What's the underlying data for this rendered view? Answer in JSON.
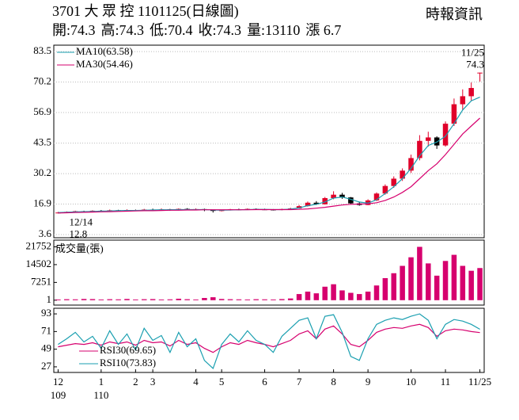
{
  "header": {
    "title": "3701 大 眾 控 1101125(日線圖)",
    "source": "時報資訊",
    "info": [
      "開:74.3",
      "高:74.3",
      "低:70.4",
      "收:74.3",
      "量:13110",
      "漲 6.7"
    ]
  },
  "chart_data": [
    {
      "type": "candlestick",
      "open": [
        13.0,
        13.2,
        13.5,
        13.8,
        13.6,
        14.0,
        13.9,
        14.2,
        14.0,
        14.3,
        14.1,
        14.5,
        14.4,
        14.6,
        14.2,
        14.8,
        14.5,
        14.7,
        14.3,
        13.9,
        14.2,
        14.6,
        14.4,
        14.8,
        14.6,
        14.5,
        14.3,
        14.7,
        15.0,
        16.0,
        17.5,
        16.8,
        19.5,
        21.0,
        19.8,
        17.2,
        16.5,
        18.5,
        21.5,
        24.8,
        28.0,
        31.5,
        37.0,
        44.5,
        46.0,
        42.5,
        52.0,
        60.5,
        64.0,
        74.3
      ],
      "high": [
        13.5,
        13.7,
        14.0,
        14.0,
        14.2,
        14.3,
        14.5,
        14.4,
        14.6,
        14.5,
        14.8,
        14.9,
        15.0,
        14.8,
        15.0,
        15.1,
        15.0,
        14.9,
        14.5,
        14.4,
        14.8,
        14.9,
        15.0,
        15.0,
        14.9,
        14.7,
        14.9,
        15.3,
        16.5,
        18.0,
        18.2,
        20.0,
        22.5,
        21.8,
        20.0,
        17.8,
        19.0,
        22.0,
        25.5,
        29.0,
        32.5,
        38.5,
        47.0,
        48.5,
        46.5,
        53.0,
        63.0,
        67.0,
        70.0,
        74.3
      ],
      "low": [
        12.8,
        13.0,
        13.3,
        13.4,
        13.5,
        13.7,
        13.8,
        13.8,
        13.9,
        13.9,
        14.0,
        14.2,
        14.3,
        14.0,
        14.1,
        14.3,
        14.4,
        13.8,
        13.2,
        13.7,
        14.1,
        14.2,
        14.3,
        14.4,
        14.3,
        14.1,
        14.2,
        14.6,
        14.9,
        15.8,
        16.5,
        16.7,
        19.0,
        19.2,
        17.0,
        16.2,
        16.4,
        18.2,
        21.0,
        24.0,
        27.0,
        30.5,
        36.0,
        42.0,
        41.0,
        42.0,
        51.0,
        58.0,
        62.0,
        70.4
      ],
      "close": [
        13.2,
        13.5,
        13.8,
        13.6,
        14.0,
        13.9,
        14.2,
        14.0,
        14.3,
        14.1,
        14.5,
        14.4,
        14.6,
        14.2,
        14.8,
        14.5,
        14.7,
        14.3,
        13.9,
        14.2,
        14.6,
        14.4,
        14.8,
        14.6,
        14.5,
        14.3,
        14.7,
        15.0,
        16.0,
        17.5,
        16.8,
        19.5,
        21.0,
        19.8,
        17.2,
        16.5,
        18.5,
        21.5,
        24.8,
        28.0,
        31.5,
        37.0,
        44.5,
        46.0,
        42.5,
        52.0,
        60.5,
        64.0,
        67.6,
        74.3
      ],
      "up_color": "#e0002a",
      "down_color": "#000000",
      "series": [
        {
          "name": "MA10(63.58)",
          "color": "#1a9fb0",
          "values": [
            13.2,
            13.3,
            13.5,
            13.6,
            13.7,
            13.8,
            13.9,
            14.0,
            14.1,
            14.1,
            14.2,
            14.3,
            14.4,
            14.4,
            14.5,
            14.5,
            14.5,
            14.5,
            14.3,
            14.2,
            14.3,
            14.4,
            14.5,
            14.6,
            14.6,
            14.5,
            14.5,
            14.7,
            15.2,
            16.2,
            16.8,
            17.8,
            19.5,
            20.0,
            19.0,
            17.8,
            17.3,
            18.8,
            21.5,
            24.5,
            28.0,
            32.5,
            38.0,
            42.5,
            44.0,
            46.5,
            52.0,
            58.0,
            62.0,
            63.58
          ]
        },
        {
          "name": "MA30(54.46)",
          "color": "#d6006e",
          "values": [
            13.0,
            13.1,
            13.2,
            13.3,
            13.4,
            13.5,
            13.6,
            13.7,
            13.8,
            13.9,
            14.0,
            14.0,
            14.1,
            14.2,
            14.2,
            14.3,
            14.3,
            14.4,
            14.4,
            14.4,
            14.4,
            14.4,
            14.4,
            14.5,
            14.5,
            14.5,
            14.5,
            14.5,
            14.6,
            14.8,
            15.1,
            15.5,
            16.0,
            16.5,
            16.8,
            16.9,
            17.0,
            17.5,
            18.5,
            20.0,
            22.0,
            24.5,
            28.0,
            31.5,
            34.5,
            38.5,
            43.0,
            47.5,
            51.0,
            54.46
          ]
        }
      ],
      "annotations": [
        {
          "date": "12/14",
          "value": 12.8,
          "x": 0
        },
        {
          "date": "11/25",
          "value": 74.3,
          "x": 49
        }
      ],
      "ylim": [
        2.2,
        86.3
      ],
      "yticks": [
        83.5,
        70.2,
        56.9,
        43.5,
        30.2,
        16.9,
        3.6
      ],
      "grid": true
    },
    {
      "type": "bar",
      "title": "成交量(張)",
      "color": "#d6006e",
      "values": [
        300,
        400,
        350,
        500,
        450,
        300,
        400,
        350,
        500,
        300,
        400,
        450,
        300,
        350,
        600,
        400,
        300,
        900,
        1200,
        500,
        400,
        350,
        300,
        400,
        350,
        300,
        450,
        700,
        2500,
        3500,
        2800,
        5500,
        6500,
        4000,
        3000,
        2500,
        3500,
        6000,
        9000,
        11000,
        14000,
        17500,
        21752,
        15000,
        10000,
        16000,
        18500,
        14000,
        12000,
        13110
      ],
      "ylim": [
        -2000,
        24500
      ],
      "yticks": [
        21752,
        14502,
        7251,
        1
      ]
    },
    {
      "type": "line",
      "series": [
        {
          "name": "RSI30(69.65)",
          "color": "#d6006e",
          "values": [
            52,
            54,
            56,
            55,
            57,
            54,
            58,
            56,
            58,
            54,
            60,
            57,
            58,
            53,
            60,
            55,
            57,
            50,
            45,
            52,
            57,
            55,
            60,
            57,
            55,
            52,
            56,
            60,
            68,
            72,
            62,
            74,
            78,
            68,
            55,
            52,
            60,
            70,
            74,
            76,
            75,
            78,
            80,
            76,
            65,
            72,
            74,
            73,
            71,
            69.65
          ]
        },
        {
          "name": "RSI10(73.83)",
          "color": "#1a9fb0",
          "values": [
            55,
            62,
            70,
            58,
            65,
            50,
            72,
            55,
            68,
            48,
            75,
            60,
            66,
            45,
            70,
            52,
            62,
            35,
            25,
            55,
            68,
            58,
            72,
            60,
            55,
            45,
            65,
            75,
            85,
            88,
            62,
            90,
            92,
            70,
            40,
            35,
            62,
            80,
            85,
            88,
            86,
            90,
            93,
            85,
            62,
            80,
            86,
            84,
            80,
            73.83
          ]
        }
      ],
      "ylim": [
        20,
        100
      ],
      "yticks": [
        93,
        71,
        49,
        27
      ],
      "xticks": [
        {
          "value": 0,
          "label": "12"
        },
        {
          "value": 5,
          "label": "1"
        },
        {
          "value": 9,
          "label": "2"
        },
        {
          "value": 11,
          "label": "3"
        },
        {
          "value": 16,
          "label": "4"
        },
        {
          "value": 19,
          "label": "5"
        },
        {
          "value": 24,
          "label": "6"
        },
        {
          "value": 28,
          "label": "7"
        },
        {
          "value": 32,
          "label": "8"
        },
        {
          "value": 36,
          "label": "9"
        },
        {
          "value": 41,
          "label": "10"
        },
        {
          "value": 45,
          "label": "11"
        },
        {
          "value": 49,
          "label": "11/25"
        }
      ],
      "xtick_years": [
        {
          "value": 0,
          "label": "109"
        },
        {
          "value": 5,
          "label": "110"
        }
      ]
    }
  ]
}
